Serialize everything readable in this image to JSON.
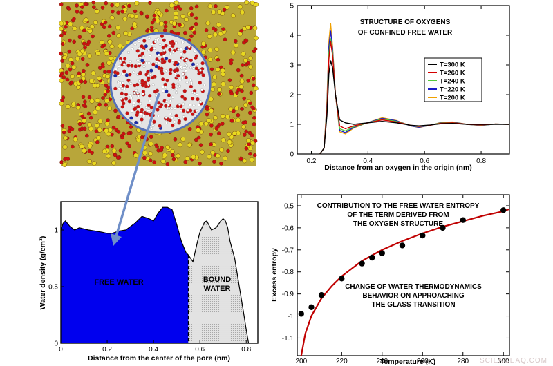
{
  "chart_data": [
    {
      "id": "oxygen_rdf",
      "type": "line",
      "title": "STRUCTURE OF OXYGENS OF CONFINED FREE WATER",
      "title_lines": [
        "STRUCTURE OF OXYGENS",
        "OF CONFINED FREE WATER"
      ],
      "xlabel": "Distance from an oxygen in the origin (nm)",
      "ylabel": "",
      "xlim": [
        0.15,
        0.9
      ],
      "ylim": [
        0,
        5
      ],
      "xticks": [
        "0.2",
        "0.4",
        "0.6",
        "0.8"
      ],
      "yticks": [
        "0",
        "1",
        "2",
        "3",
        "4",
        "5"
      ],
      "legend_position": "middle-right",
      "series": [
        {
          "name": "T=300 K",
          "color": "#000000",
          "x": [
            0.23,
            0.245,
            0.255,
            0.262,
            0.268,
            0.275,
            0.285,
            0.3,
            0.32,
            0.35,
            0.4,
            0.45,
            0.5,
            0.55,
            0.58,
            0.62,
            0.66,
            0.7,
            0.75,
            0.8,
            0.85,
            0.9
          ],
          "y": [
            0.0,
            0.2,
            1.3,
            2.7,
            3.15,
            2.9,
            2.0,
            1.15,
            1.05,
            1.0,
            1.05,
            1.1,
            1.05,
            0.97,
            0.95,
            0.98,
            1.02,
            1.03,
            1.0,
            1.0,
            1.0,
            1.0
          ]
        },
        {
          "name": "T=260 K",
          "color": "#d40000",
          "x": [
            0.23,
            0.245,
            0.255,
            0.262,
            0.268,
            0.275,
            0.285,
            0.3,
            0.32,
            0.35,
            0.4,
            0.45,
            0.5,
            0.55,
            0.58,
            0.62,
            0.66,
            0.7,
            0.75,
            0.8,
            0.85,
            0.9
          ],
          "y": [
            0.0,
            0.2,
            1.5,
            3.2,
            3.8,
            3.3,
            2.0,
            0.95,
            0.85,
            0.95,
            1.05,
            1.15,
            1.08,
            0.97,
            0.93,
            0.97,
            1.04,
            1.05,
            1.0,
            0.98,
            1.01,
            1.0
          ]
        },
        {
          "name": "T=240 K",
          "color": "#55c83c",
          "x": [
            0.23,
            0.245,
            0.255,
            0.262,
            0.268,
            0.275,
            0.285,
            0.3,
            0.32,
            0.35,
            0.4,
            0.45,
            0.5,
            0.55,
            0.58,
            0.62,
            0.66,
            0.7,
            0.75,
            0.8,
            0.85,
            0.9
          ],
          "y": [
            0.0,
            0.2,
            1.6,
            3.4,
            3.9,
            3.4,
            2.0,
            0.85,
            0.78,
            0.92,
            1.05,
            1.18,
            1.1,
            0.96,
            0.92,
            0.97,
            1.05,
            1.06,
            1.0,
            0.97,
            1.01,
            1.0
          ]
        },
        {
          "name": "T=220 K",
          "color": "#1c1cc8",
          "x": [
            0.23,
            0.245,
            0.255,
            0.262,
            0.268,
            0.275,
            0.285,
            0.3,
            0.32,
            0.35,
            0.4,
            0.45,
            0.5,
            0.55,
            0.58,
            0.62,
            0.66,
            0.7,
            0.75,
            0.8,
            0.85,
            0.9
          ],
          "y": [
            0.0,
            0.2,
            1.7,
            3.6,
            4.15,
            3.5,
            2.0,
            0.8,
            0.72,
            0.9,
            1.06,
            1.2,
            1.12,
            0.95,
            0.9,
            0.97,
            1.06,
            1.07,
            1.0,
            0.96,
            1.01,
            1.0
          ]
        },
        {
          "name": "T=200 K",
          "color": "#f0a000",
          "x": [
            0.23,
            0.245,
            0.255,
            0.262,
            0.268,
            0.275,
            0.285,
            0.3,
            0.32,
            0.35,
            0.4,
            0.45,
            0.5,
            0.55,
            0.58,
            0.62,
            0.66,
            0.7,
            0.75,
            0.8,
            0.85,
            0.9
          ],
          "y": [
            0.0,
            0.2,
            1.8,
            3.8,
            4.4,
            3.6,
            2.0,
            0.75,
            0.68,
            0.88,
            1.06,
            1.22,
            1.13,
            0.95,
            0.89,
            0.97,
            1.07,
            1.08,
            1.0,
            0.96,
            1.01,
            1.0
          ]
        }
      ]
    },
    {
      "id": "water_density",
      "type": "area",
      "title": "",
      "xlabel": "Distance from the center of the pore (nm)",
      "ylabel": "Water density (g/cm",
      "ylabel_sup": "3",
      "ylabel_close": ")",
      "xlim": [
        0,
        0.85
      ],
      "ylim": [
        0,
        1.25
      ],
      "xticks": [
        "0",
        "0.2",
        "0.4",
        "0.6",
        "0.8"
      ],
      "yticks": [
        "0",
        "0.5",
        "1"
      ],
      "split_x": 0.55,
      "regions": [
        {
          "name": "FREE WATER",
          "color": "#0000ee",
          "label_color": "#f0a050"
        },
        {
          "name": "BOUND WATER",
          "color": "#e6e6e6",
          "label_color": "#000000"
        }
      ],
      "x": [
        0.0,
        0.01,
        0.02,
        0.04,
        0.06,
        0.08,
        0.1,
        0.12,
        0.15,
        0.18,
        0.2,
        0.22,
        0.25,
        0.28,
        0.3,
        0.32,
        0.35,
        0.38,
        0.4,
        0.42,
        0.44,
        0.46,
        0.48,
        0.5,
        0.52,
        0.54,
        0.55,
        0.57,
        0.59,
        0.6,
        0.62,
        0.63,
        0.65,
        0.67,
        0.69,
        0.7,
        0.71,
        0.72,
        0.73,
        0.75,
        0.77,
        0.79,
        0.8,
        0.81
      ],
      "y": [
        1.0,
        1.06,
        1.08,
        1.03,
        1.0,
        1.02,
        1.01,
        1.0,
        0.99,
        0.98,
        0.97,
        0.97,
        0.99,
        1.0,
        1.03,
        1.06,
        1.12,
        1.1,
        1.08,
        1.15,
        1.2,
        1.2,
        1.18,
        1.05,
        0.9,
        0.8,
        0.78,
        0.72,
        0.9,
        0.98,
        1.07,
        1.08,
        1.0,
        1.02,
        1.08,
        1.1,
        1.08,
        1.02,
        0.9,
        0.75,
        0.5,
        0.25,
        0.12,
        0.0
      ]
    },
    {
      "id": "excess_entropy",
      "type": "scatter",
      "title": "",
      "xlabel": "Temperature  (K)",
      "ylabel": "Excess entropy",
      "xlim": [
        198,
        303
      ],
      "ylim": [
        -1.18,
        -0.45
      ],
      "xticks": [
        "200",
        "220",
        "240",
        "260",
        "280",
        "300"
      ],
      "yticks": [
        "-1.1",
        "-1",
        "-0.9",
        "-0.8",
        "-0.7",
        "-0.6",
        "-0.5"
      ],
      "annotations": [
        [
          "CONTRIBUTION TO THE FREE WATER ENTROPY",
          "OF THE TERM DERIVED FROM",
          "THE OXYGEN STRUCTURE"
        ],
        [
          "CHANGE OF WATER THERMODYNAMICS",
          "BEHAVIOR ON APPROACHING",
          "THE GLASS TRANSITION"
        ]
      ],
      "points": {
        "x": [
          200,
          205,
          210,
          220,
          230,
          235,
          240,
          250,
          260,
          270,
          280,
          300
        ],
        "y": [
          -0.99,
          -0.96,
          -0.905,
          -0.83,
          -0.762,
          -0.735,
          -0.715,
          -0.68,
          -0.635,
          -0.6,
          -0.565,
          -0.52
        ],
        "color": "#000000"
      },
      "fit": {
        "color": "#c00000",
        "x": [
          200,
          202,
          205,
          210,
          215,
          220,
          230,
          240,
          250,
          260,
          270,
          280,
          290,
          300,
          303
        ],
        "y": [
          -1.18,
          -1.08,
          -1.0,
          -0.92,
          -0.865,
          -0.82,
          -0.75,
          -0.7,
          -0.66,
          -0.625,
          -0.595,
          -0.57,
          -0.545,
          -0.525,
          -0.515
        ]
      }
    }
  ],
  "image_panel": {
    "pore_outline_color": "#5570b8",
    "arrow_color": "#6f8fc8"
  },
  "watermark": "SCIENCEAQ.COM"
}
